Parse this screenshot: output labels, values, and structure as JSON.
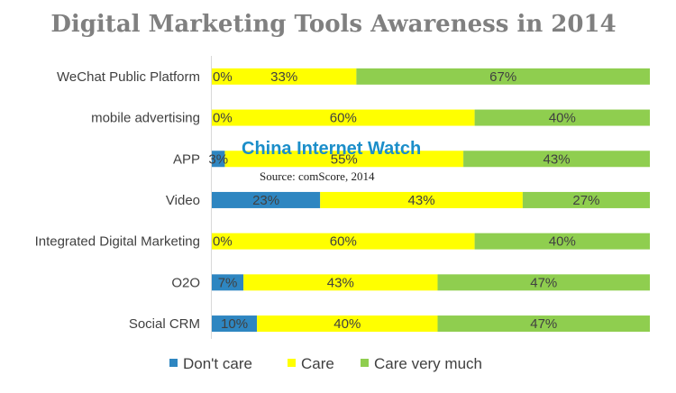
{
  "chart_data": {
    "type": "bar",
    "orientation": "horizontal",
    "stacked": true,
    "title": "Digital Marketing Tools Awareness in 2014",
    "categories": [
      "WeChat Public Platform",
      "mobile advertising",
      "APP",
      "Video",
      "Integrated Digital Marketing",
      "O2O",
      "Social CRM"
    ],
    "series": [
      {
        "name": "Don't care",
        "color": "#2e86c1",
        "values": [
          0,
          0,
          3,
          23,
          0,
          7,
          10
        ],
        "labels": [
          "0%",
          "0%",
          "3%",
          "23%",
          "0%",
          "7%",
          "10%"
        ]
      },
      {
        "name": "Care",
        "color": "#ffff00",
        "values": [
          33,
          60,
          55,
          43,
          60,
          43,
          40
        ],
        "labels": [
          "33%",
          "60%",
          "55%",
          "43%",
          "60%",
          "43%",
          "40%"
        ]
      },
      {
        "name": "Care very much",
        "color": "#8fce4f",
        "values": [
          67,
          40,
          43,
          27,
          40,
          47,
          47
        ],
        "labels": [
          "67%",
          "40%",
          "43%",
          "27%",
          "40%",
          "47%",
          "47%"
        ]
      }
    ],
    "legend_position": "bottom",
    "grid": false
  },
  "watermark": {
    "text": "China Internet Watch",
    "source": "Source: comScore, 2014"
  }
}
